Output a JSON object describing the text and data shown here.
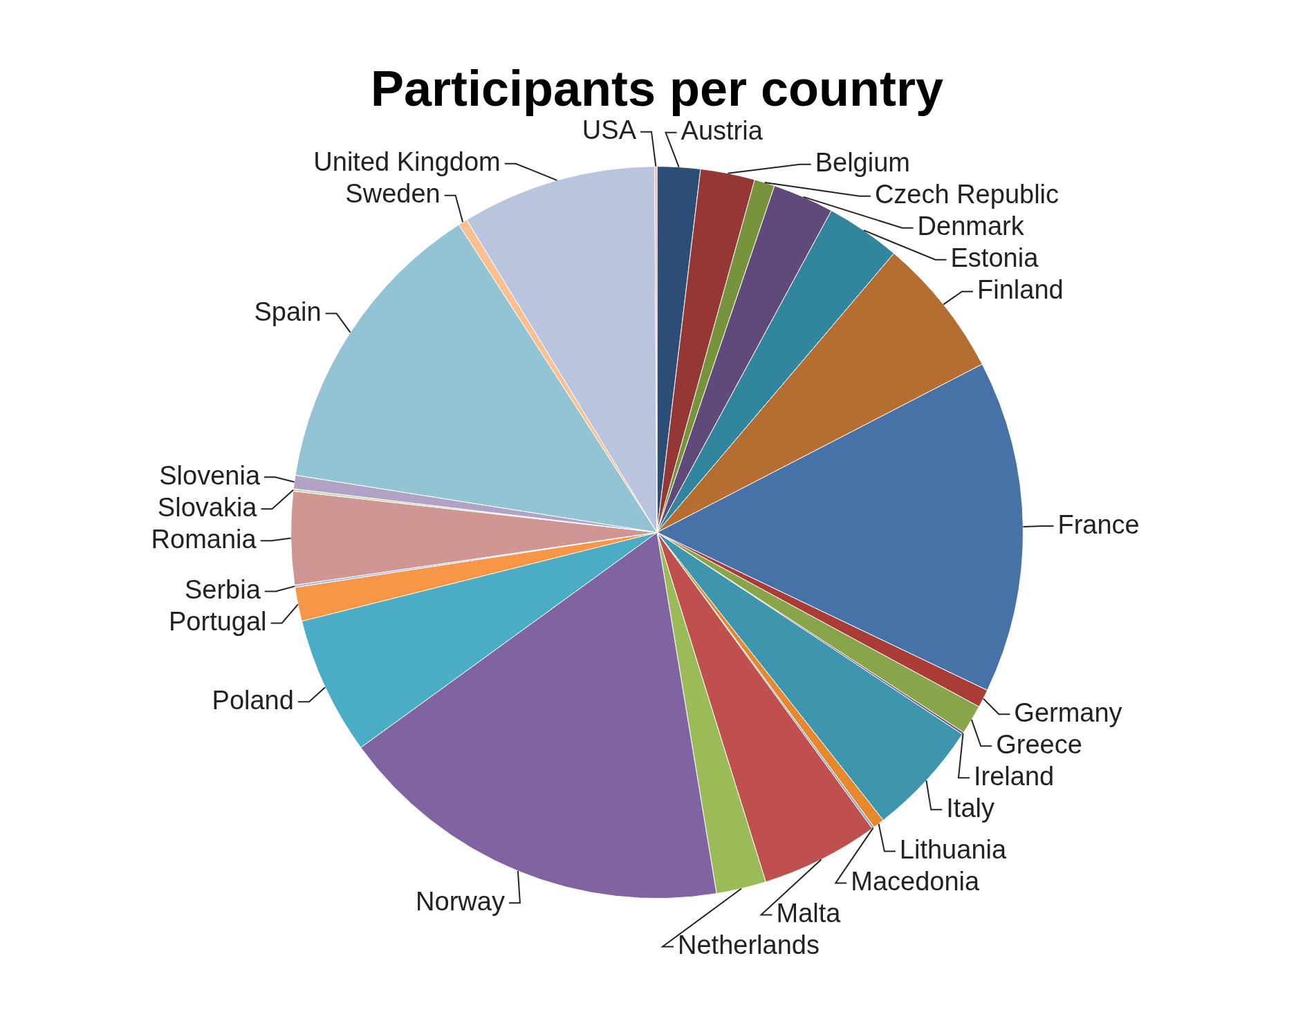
{
  "chart_data": {
    "type": "pie",
    "title": "Participants per country",
    "categories": [
      "Austria",
      "Belgium",
      "Czech Republic",
      "Denmark",
      "Estonia",
      "Finland",
      "France",
      "Germany",
      "Greece",
      "Ireland",
      "Italy",
      "Lithuania",
      "Macedonia",
      "Malta",
      "Netherlands",
      "Norway",
      "Poland",
      "Portugal",
      "Serbia",
      "Romania",
      "Slovakia",
      "Slovenia",
      "Spain",
      "Sweden",
      "United Kingdom",
      "USA"
    ],
    "values": [
      1.9,
      2.4,
      0.9,
      2.7,
      3.3,
      6.2,
      14.7,
      0.8,
      1.3,
      0.1,
      5.1,
      0.5,
      0.1,
      5.2,
      2.2,
      17.6,
      6.1,
      1.5,
      0.1,
      4.1,
      0.1,
      0.6,
      13.4,
      0.4,
      8.6,
      0.1
    ],
    "colors": [
      "#2c4d75",
      "#953735",
      "#77933c",
      "#604a7b",
      "#31859c",
      "#b66d31",
      "#4672a8",
      "#aa3c38",
      "#88a54a",
      "#6f5791",
      "#3d96ad",
      "#e6892e",
      "#8aa6c9",
      "#c0504d",
      "#9bbb59",
      "#8064a2",
      "#4bacc6",
      "#f79646",
      "#a5b6d6",
      "#d09694",
      "#c3d69b",
      "#b3a2c7",
      "#93c4d4",
      "#fac090",
      "#b9c4de",
      "#f2b1b0"
    ]
  }
}
